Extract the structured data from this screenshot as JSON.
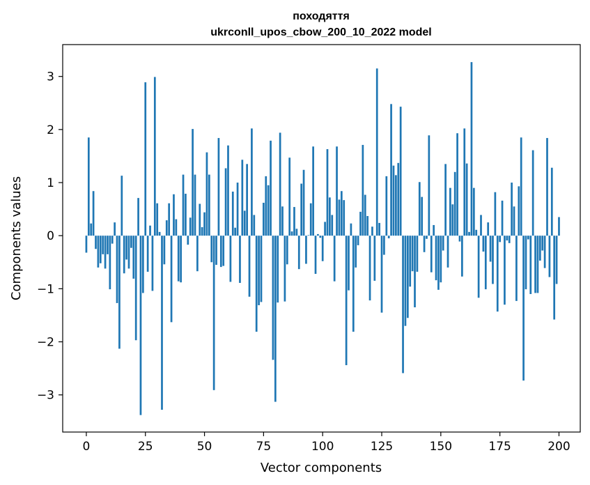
{
  "chart_data": {
    "type": "bar",
    "title": "походяття",
    "subtitle": "ukrconll_upos_cbow_200_10_2022 model",
    "xlabel": "Vector components",
    "ylabel": "Components values",
    "xlim": [
      -10,
      209
    ],
    "ylim": [
      -3.7,
      3.6
    ],
    "xticks": [
      0,
      25,
      50,
      75,
      100,
      125,
      150,
      175,
      200
    ],
    "yticks": [
      -3,
      -2,
      -1,
      0,
      1,
      2,
      3
    ],
    "bar_color": "#1f77b4",
    "values": [
      -0.32,
      1.85,
      0.23,
      0.84,
      -0.25,
      -0.6,
      -0.52,
      -0.35,
      -0.62,
      -0.35,
      -1.01,
      -0.15,
      0.25,
      -1.27,
      -2.13,
      1.13,
      -0.71,
      -0.45,
      -0.62,
      -0.23,
      -0.81,
      -1.97,
      0.71,
      -3.38,
      -1.08,
      2.89,
      -0.68,
      0.19,
      -1.04,
      2.99,
      0.61,
      0.07,
      -3.28,
      -0.54,
      0.29,
      0.61,
      -1.63,
      0.78,
      0.31,
      -0.86,
      -0.88,
      1.15,
      0.79,
      -0.17,
      0.34,
      2.01,
      1.15,
      -0.67,
      0.6,
      0.16,
      0.44,
      1.57,
      1.15,
      -0.5,
      -2.91,
      -0.55,
      1.84,
      -0.59,
      -0.57,
      1.27,
      1.7,
      -0.87,
      0.83,
      0.15,
      1.0,
      -0.89,
      1.43,
      0.47,
      1.35,
      -1.15,
      2.02,
      0.39,
      -1.81,
      -1.31,
      -1.25,
      0.62,
      1.12,
      0.95,
      1.79,
      -2.34,
      -3.13,
      -1.26,
      1.94,
      0.55,
      -1.24,
      -0.54,
      1.47,
      0.08,
      0.54,
      0.13,
      -0.63,
      0.98,
      1.24,
      -0.53,
      0.01,
      0.61,
      1.68,
      -0.72,
      0.03,
      -0.04,
      -0.48,
      0.26,
      1.63,
      0.72,
      0.39,
      -0.86,
      1.68,
      0.68,
      0.84,
      0.67,
      -2.44,
      -1.03,
      0.23,
      -1.81,
      -0.6,
      -0.18,
      0.45,
      1.71,
      0.77,
      0.37,
      -1.22,
      0.17,
      -0.85,
      3.15,
      0.24,
      -1.45,
      -0.36,
      1.12,
      -0.05,
      2.48,
      1.32,
      1.14,
      1.37,
      2.43,
      -2.59,
      -1.7,
      -1.55,
      -0.96,
      -0.67,
      -1.35,
      -0.68,
      1.01,
      0.73,
      -0.31,
      -0.06,
      1.89,
      -0.69,
      0.2,
      -0.84,
      -1.02,
      -0.88,
      -0.28,
      1.35,
      -0.6,
      0.9,
      0.59,
      1.2,
      1.93,
      -0.11,
      -0.77,
      2.02,
      1.36,
      0.07,
      3.27,
      0.9,
      0.11,
      -1.17,
      0.39,
      -0.3,
      -1.01,
      0.25,
      -0.49,
      -0.91,
      0.82,
      -1.43,
      -0.12,
      0.66,
      -1.3,
      -0.09,
      -0.14,
      1.0,
      0.55,
      -1.23,
      0.93,
      1.85,
      -2.73,
      -1.01,
      -0.07,
      -1.1,
      1.61,
      -1.08,
      -1.08,
      -0.47,
      -0.28,
      -0.61,
      1.84,
      -0.78,
      1.28,
      -1.58,
      -0.91,
      0.35
    ]
  }
}
